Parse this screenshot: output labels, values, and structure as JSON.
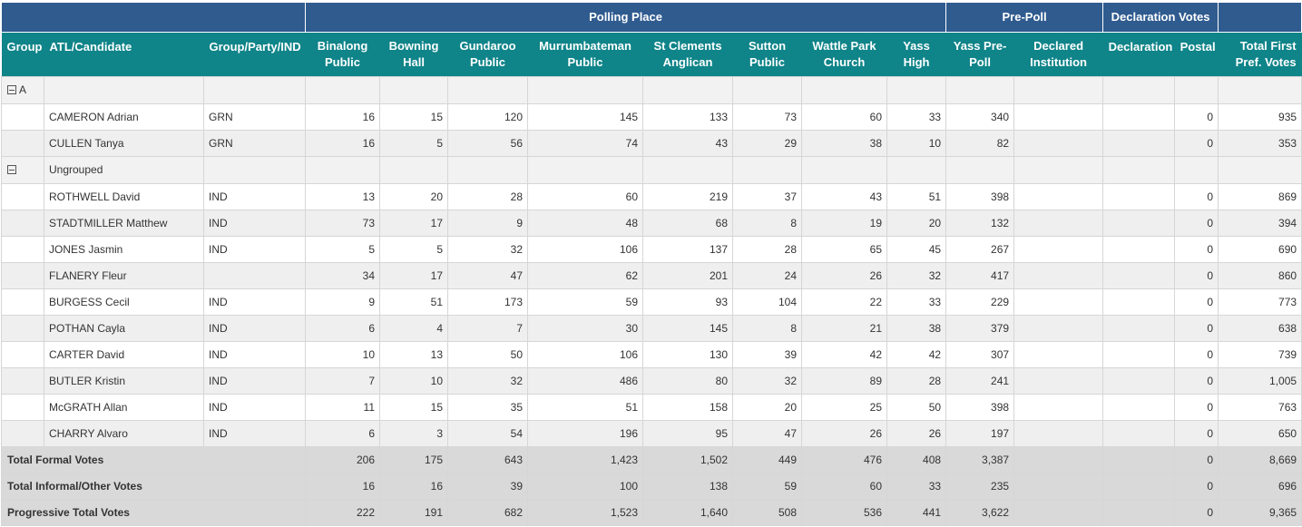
{
  "header_groups": {
    "polling_place": "Polling Place",
    "pre_poll": "Pre-Poll",
    "declaration_votes": "Declaration Votes"
  },
  "columns": {
    "group": "Group",
    "candidate": "ATL/Candidate",
    "party": "Group/Party/IND",
    "binalong": "Binalong Public",
    "bowning": "Bowning Hall",
    "gundaroo": "Gundaroo Public",
    "murrumbateman": "Murrumbateman Public",
    "stclements": "St Clements Anglican",
    "sutton": "Sutton Public",
    "wattle": "Wattle Park Church",
    "yass": "Yass High",
    "yass_prepoll": "Yass Pre-Poll",
    "declared_institution": "Declared Institution",
    "declaration": "Declaration",
    "postal": "Postal",
    "total": "Total First Pref. Votes"
  },
  "groups": [
    {
      "label": "A",
      "candidates": [
        {
          "name": "CAMERON Adrian",
          "party": "GRN",
          "v": [
            "16",
            "15",
            "120",
            "145",
            "133",
            "73",
            "60",
            "33",
            "340",
            "",
            "",
            "0",
            "935"
          ]
        },
        {
          "name": "CULLEN Tanya",
          "party": "GRN",
          "v": [
            "16",
            "5",
            "56",
            "74",
            "43",
            "29",
            "38",
            "10",
            "82",
            "",
            "",
            "0",
            "353"
          ]
        }
      ]
    },
    {
      "label": "Ungrouped",
      "candidates": [
        {
          "name": "ROTHWELL David",
          "party": "IND",
          "v": [
            "13",
            "20",
            "28",
            "60",
            "219",
            "37",
            "43",
            "51",
            "398",
            "",
            "",
            "0",
            "869"
          ]
        },
        {
          "name": "STADTMILLER Matthew",
          "party": "IND",
          "v": [
            "73",
            "17",
            "9",
            "48",
            "68",
            "8",
            "19",
            "20",
            "132",
            "",
            "",
            "0",
            "394"
          ]
        },
        {
          "name": "JONES Jasmin",
          "party": "IND",
          "v": [
            "5",
            "5",
            "32",
            "106",
            "137",
            "28",
            "65",
            "45",
            "267",
            "",
            "",
            "0",
            "690"
          ]
        },
        {
          "name": "FLANERY Fleur",
          "party": "",
          "v": [
            "34",
            "17",
            "47",
            "62",
            "201",
            "24",
            "26",
            "32",
            "417",
            "",
            "",
            "0",
            "860"
          ]
        },
        {
          "name": "BURGESS Cecil",
          "party": "IND",
          "v": [
            "9",
            "51",
            "173",
            "59",
            "93",
            "104",
            "22",
            "33",
            "229",
            "",
            "",
            "0",
            "773"
          ]
        },
        {
          "name": "POTHAN Cayla",
          "party": "IND",
          "v": [
            "6",
            "4",
            "7",
            "30",
            "145",
            "8",
            "21",
            "38",
            "379",
            "",
            "",
            "0",
            "638"
          ]
        },
        {
          "name": "CARTER David",
          "party": "IND",
          "v": [
            "10",
            "13",
            "50",
            "106",
            "130",
            "39",
            "42",
            "42",
            "307",
            "",
            "",
            "0",
            "739"
          ]
        },
        {
          "name": "BUTLER Kristin",
          "party": "IND",
          "v": [
            "7",
            "10",
            "32",
            "486",
            "80",
            "32",
            "89",
            "28",
            "241",
            "",
            "",
            "0",
            "1,005"
          ]
        },
        {
          "name": "McGRATH Allan",
          "party": "IND",
          "v": [
            "11",
            "15",
            "35",
            "51",
            "158",
            "20",
            "25",
            "50",
            "398",
            "",
            "",
            "0",
            "763"
          ]
        },
        {
          "name": "CHARRY Alvaro",
          "party": "IND",
          "v": [
            "6",
            "3",
            "54",
            "196",
            "95",
            "47",
            "26",
            "26",
            "197",
            "",
            "",
            "0",
            "650"
          ]
        }
      ]
    }
  ],
  "totals": [
    {
      "label": "Total Formal Votes",
      "v": [
        "206",
        "175",
        "643",
        "1,423",
        "1,502",
        "449",
        "476",
        "408",
        "3,387",
        "",
        "",
        "0",
        "8,669"
      ]
    },
    {
      "label": "Total Informal/Other Votes",
      "v": [
        "16",
        "16",
        "39",
        "100",
        "138",
        "59",
        "60",
        "33",
        "235",
        "",
        "",
        "0",
        "696"
      ]
    },
    {
      "label": "Progressive Total Votes",
      "v": [
        "222",
        "191",
        "682",
        "1,523",
        "1,640",
        "508",
        "536",
        "441",
        "3,622",
        "",
        "",
        "0",
        "9,365"
      ]
    }
  ]
}
